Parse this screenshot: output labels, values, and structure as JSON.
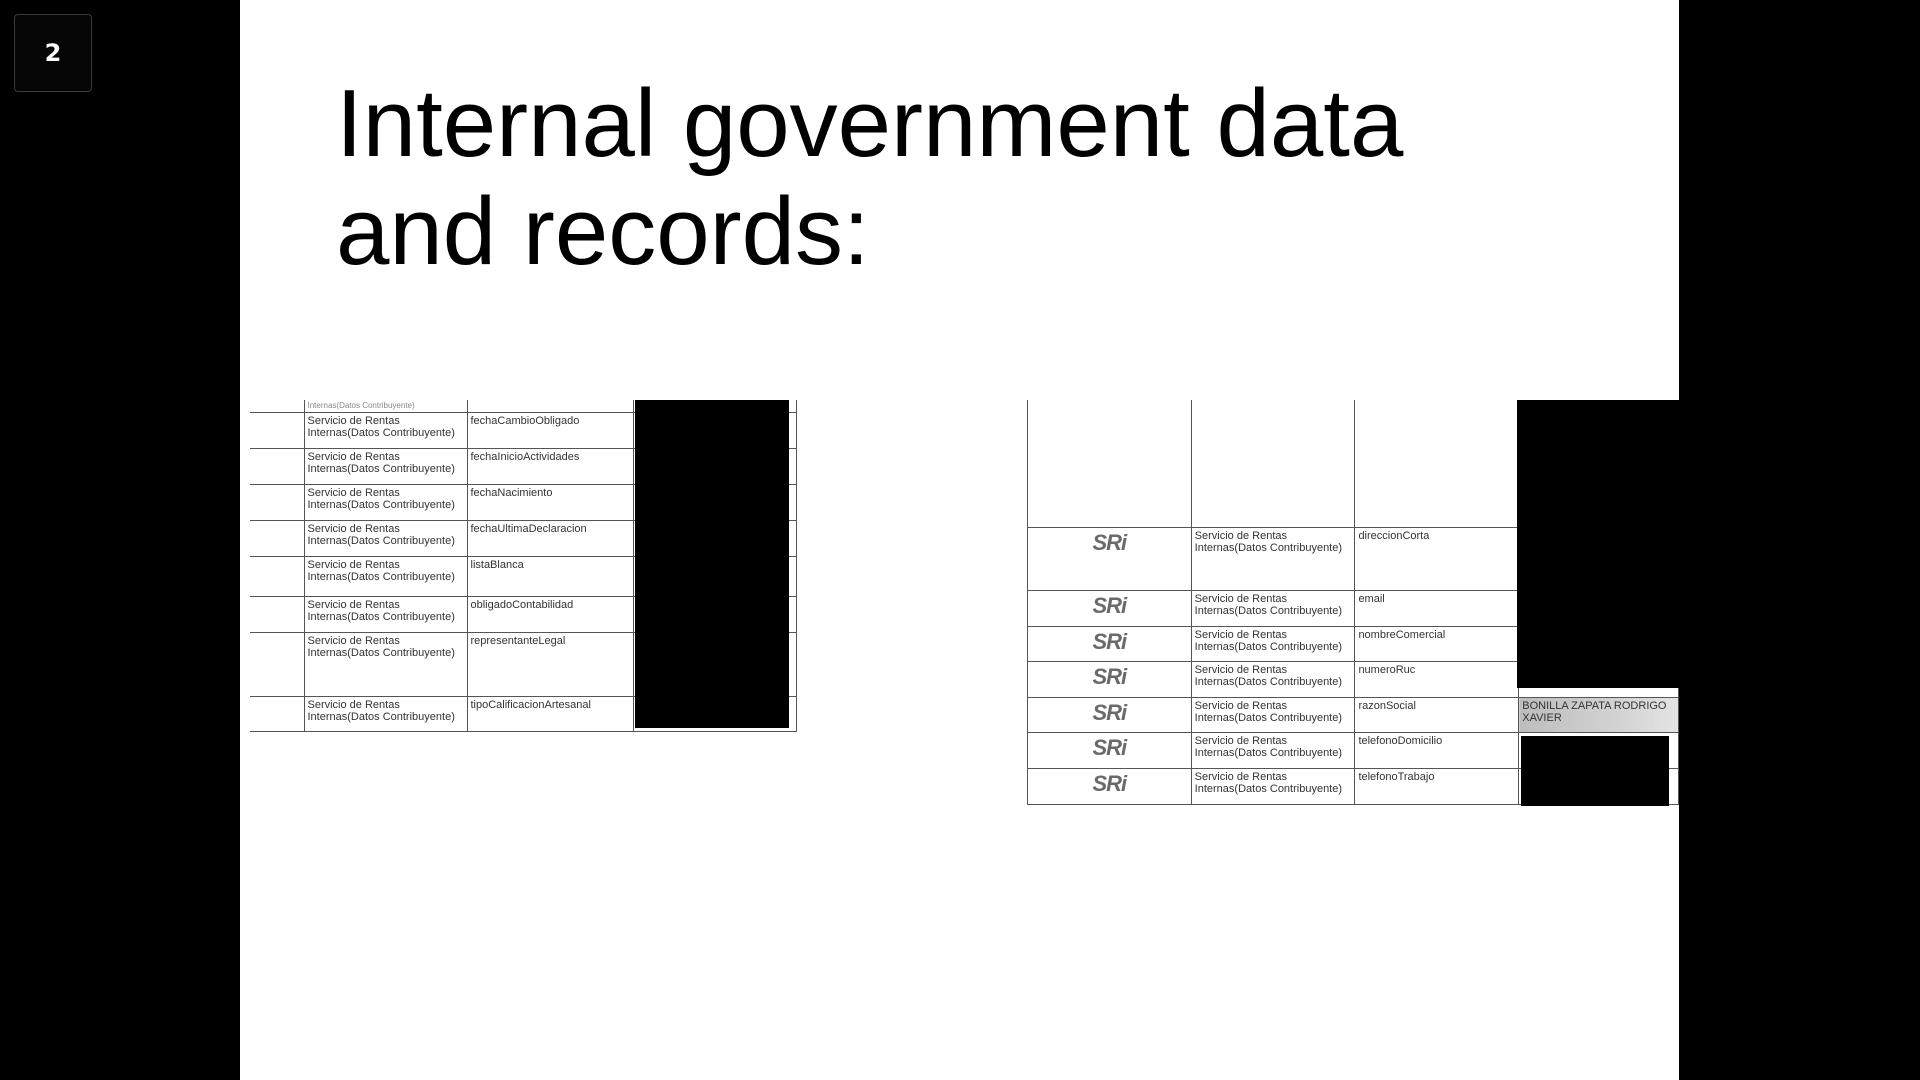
{
  "slide_counter": "2",
  "title": {
    "line1": "Internal government data",
    "line2": "and records:"
  },
  "left_table": {
    "cutoff_text": "Internas(Datos Contribuyente)",
    "rows": [
      {
        "source": "Servicio de Rentas Internas(Datos Contribuyente)",
        "field": "fechaCambioObligado"
      },
      {
        "source": "Servicio de Rentas Internas(Datos Contribuyente)",
        "field": "fechaInicioActividades"
      },
      {
        "source": "Servicio de Rentas Internas(Datos Contribuyente)",
        "field": "fechaNacimiento"
      },
      {
        "source": "Servicio de Rentas Internas(Datos Contribuyente)",
        "field": "fechaUltimaDeclaracion"
      },
      {
        "source": "Servicio de Rentas Internas(Datos Contribuyente)",
        "field": "listaBlanca"
      },
      {
        "source": "Servicio de Rentas Internas(Datos Contribuyente)",
        "field": "obligadoContabilidad"
      },
      {
        "source": "Servicio de Rentas Internas(Datos Contribuyente)",
        "field": "representanteLegal"
      },
      {
        "source": "Servicio de Rentas Internas(Datos Contribuyente)",
        "field": "tipoCalificacionArtesanal"
      }
    ]
  },
  "right_table": {
    "logo_text": "SRi",
    "rows": [
      {
        "source": "Servicio de Rentas Internas(Datos Contribuyente)",
        "field": "direccionCorta",
        "value": ""
      },
      {
        "source": "Servicio de Rentas Internas(Datos Contribuyente)",
        "field": "email",
        "value": ""
      },
      {
        "source": "Servicio de Rentas Internas(Datos Contribuyente)",
        "field": "nombreComercial",
        "value": ""
      },
      {
        "source": "Servicio de Rentas Internas(Datos Contribuyente)",
        "field": "numeroRuc",
        "value": ""
      },
      {
        "source": "Servicio de Rentas Internas(Datos Contribuyente)",
        "field": "razonSocial",
        "value": "BONILLA ZAPATA RODRIGO XAVIER"
      },
      {
        "source": "Servicio de Rentas Internas(Datos Contribuyente)",
        "field": "telefonoDomicilio",
        "value": ""
      },
      {
        "source": "Servicio de Rentas Internas(Datos Contribuyente)",
        "field": "telefonoTrabajo",
        "value": ""
      }
    ]
  },
  "colors": {
    "background": "#000000",
    "slide": "#ffffff",
    "redaction": "#000000"
  }
}
